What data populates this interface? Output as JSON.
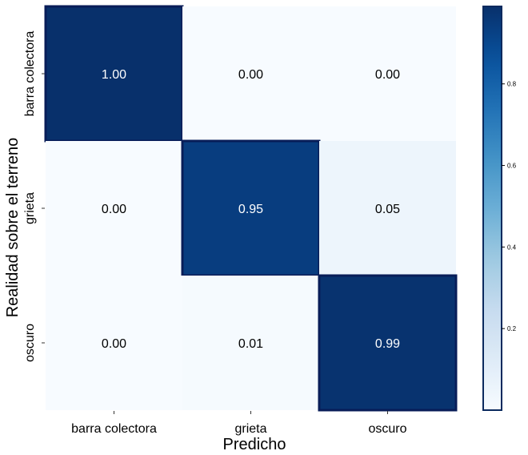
{
  "chart_data": {
    "type": "heatmap",
    "title": "",
    "xlabel": "Predicho",
    "ylabel": "Realidad sobre el terreno",
    "x_categories": [
      "barra colectora",
      "grieta",
      "oscuro"
    ],
    "y_categories": [
      "barra colectora",
      "grieta",
      "oscuro"
    ],
    "values": [
      [
        1.0,
        0.0,
        0.0
      ],
      [
        0.0,
        0.95,
        0.05
      ],
      [
        0.0,
        0.01,
        0.99
      ]
    ],
    "value_labels": [
      [
        "1.00",
        "0.00",
        "0.00"
      ],
      [
        "0.00",
        "0.95",
        "0.05"
      ],
      [
        "0.00",
        "0.01",
        "0.99"
      ]
    ],
    "colormap": "Blues",
    "color_range": [
      0,
      1
    ],
    "colorbar_ticks": [
      "0.2",
      "0.4",
      "0.6",
      "0.8"
    ],
    "colorbar_tick_values": [
      0.2,
      0.4,
      0.6,
      0.8
    ]
  }
}
